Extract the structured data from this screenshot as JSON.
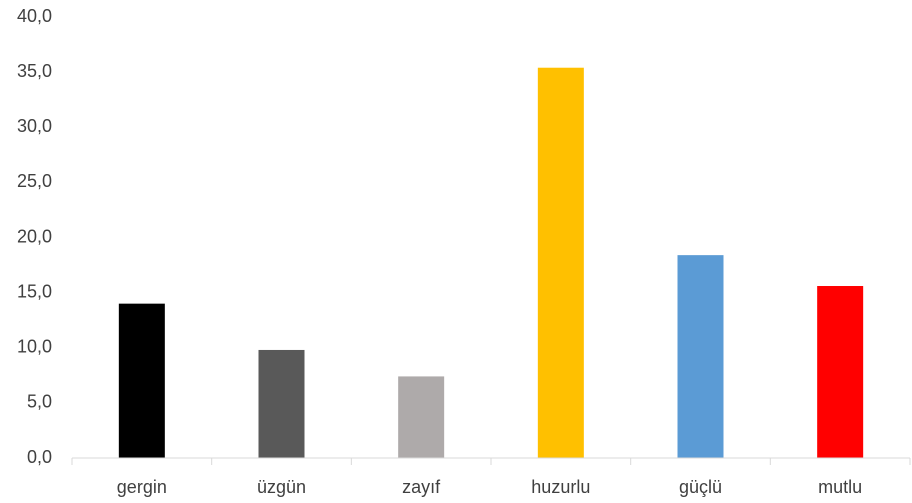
{
  "chart_data": {
    "type": "bar",
    "categories": [
      "gergin",
      "üzgün",
      "zayıf",
      "huzurlu",
      "güçlü",
      "mutlu"
    ],
    "values": [
      14.0,
      9.8,
      7.4,
      35.4,
      18.4,
      15.6
    ],
    "colors": [
      "#000000",
      "#595959",
      "#aeaaaa",
      "#ffc000",
      "#5b9bd5",
      "#ff0000"
    ],
    "ylim": [
      0,
      40
    ],
    "yticks": [
      {
        "value": 0,
        "label": "0,0"
      },
      {
        "value": 5,
        "label": "5,0"
      },
      {
        "value": 10,
        "label": "10,0"
      },
      {
        "value": 15,
        "label": "15,0"
      },
      {
        "value": 20,
        "label": "20,0"
      },
      {
        "value": 25,
        "label": "25,0"
      },
      {
        "value": 30,
        "label": "30,0"
      },
      {
        "value": 35,
        "label": "35,0"
      },
      {
        "value": 40,
        "label": "40,0"
      }
    ],
    "grid": false
  }
}
